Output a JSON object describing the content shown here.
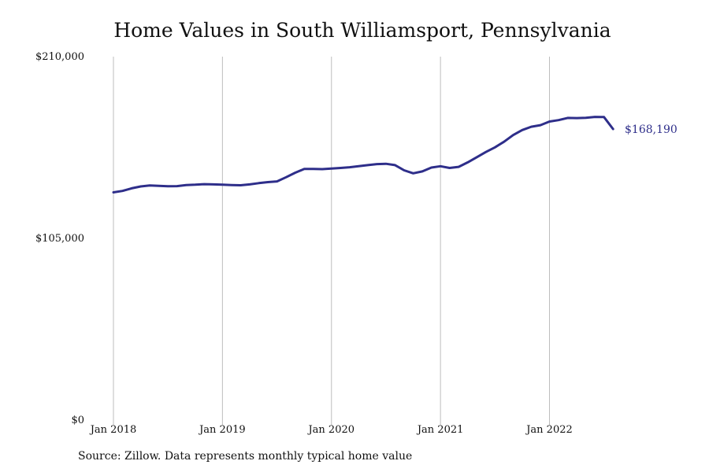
{
  "chart_data": {
    "type": "line",
    "title": "Home Values in South Williamsport, Pennsylvania",
    "xlabel": "",
    "ylabel": "",
    "grid": "vertical",
    "x_ticks": [
      "Jan 2018",
      "Jan 2019",
      "Jan 2020",
      "Jan 2021",
      "Jan 2022"
    ],
    "y_ticks": [
      "$0",
      "$105,000",
      "$210,000"
    ],
    "y_tick_values": [
      0,
      105000,
      210000
    ],
    "ylim": [
      0,
      210000
    ],
    "line_color": "#2e2e8a",
    "end_label": "$168,190",
    "series": [
      {
        "x": [
          "2018-01",
          "2018-02",
          "2018-03",
          "2018-04",
          "2018-05",
          "2018-06",
          "2018-07",
          "2018-08",
          "2018-09",
          "2018-10",
          "2018-11",
          "2018-12",
          "2019-01",
          "2019-02",
          "2019-03",
          "2019-04",
          "2019-05",
          "2019-06",
          "2019-07",
          "2019-08",
          "2019-09",
          "2019-10",
          "2019-11",
          "2019-12",
          "2020-01",
          "2020-02",
          "2020-03",
          "2020-04",
          "2020-05",
          "2020-06",
          "2020-07",
          "2020-08",
          "2020-09",
          "2020-10",
          "2020-11",
          "2020-12",
          "2021-01",
          "2021-02",
          "2021-03",
          "2021-04",
          "2021-05",
          "2021-06",
          "2021-07",
          "2021-08",
          "2021-09",
          "2021-10",
          "2021-11",
          "2021-12",
          "2022-01",
          "2022-02",
          "2022-03",
          "2022-04",
          "2022-05",
          "2022-06",
          "2022-07",
          "2022-08"
        ],
        "values": [
          131600,
          132400,
          133900,
          135000,
          135600,
          135300,
          135100,
          135200,
          135800,
          136000,
          136300,
          136200,
          136000,
          135800,
          135700,
          136200,
          136900,
          137500,
          137900,
          140300,
          142900,
          145100,
          145100,
          145000,
          145300,
          145700,
          146100,
          146700,
          147300,
          147900,
          148100,
          147300,
          144300,
          142600,
          143700,
          145900,
          146700,
          145700,
          146300,
          148900,
          151900,
          154900,
          157600,
          160800,
          164700,
          167600,
          169500,
          170400,
          172500,
          173300,
          174600,
          174500,
          174700,
          175200,
          175100,
          168190
        ]
      }
    ]
  },
  "source_note": "Source: Zillow. Data represents monthly typical home value"
}
